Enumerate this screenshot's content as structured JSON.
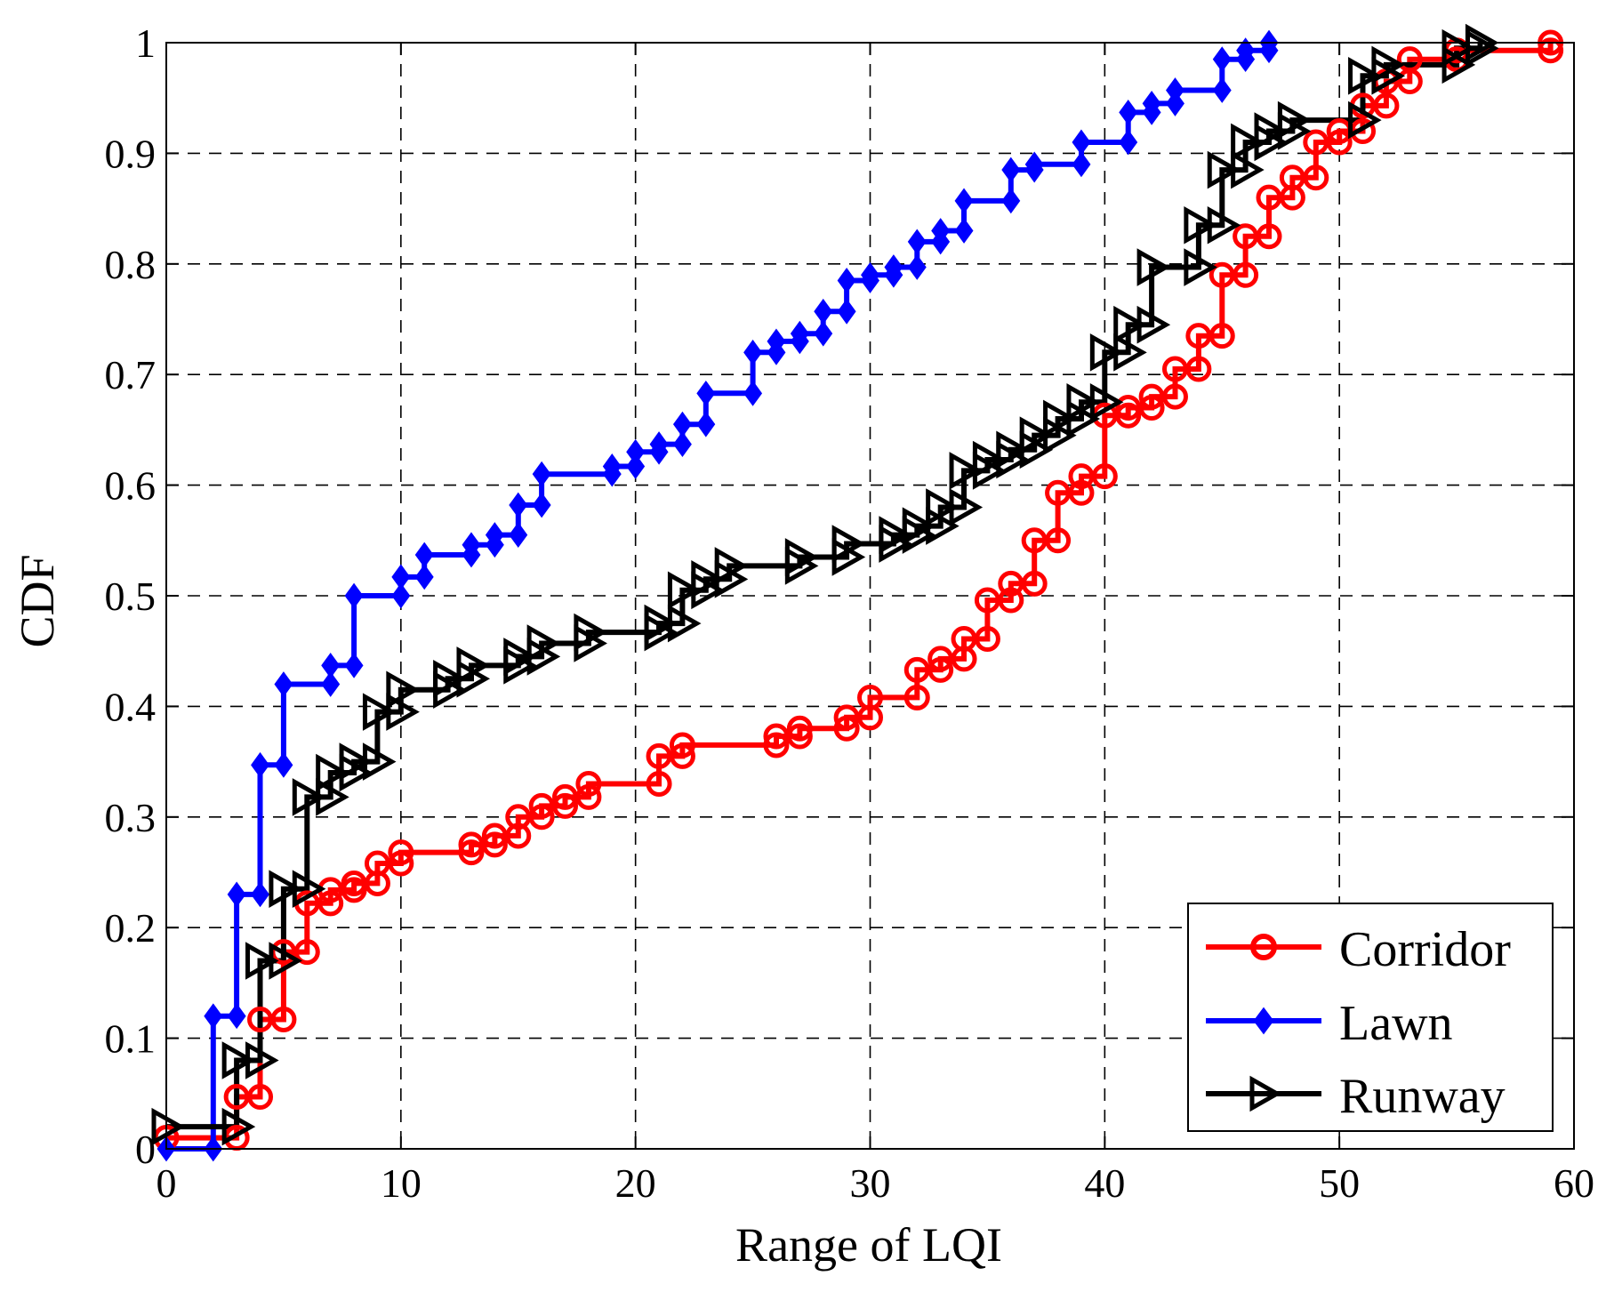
{
  "chart_data": {
    "type": "line",
    "step": true,
    "title": "",
    "xlabel": "Range of LQI",
    "ylabel": "CDF",
    "xlim": [
      0,
      60
    ],
    "ylim": [
      0,
      1
    ],
    "xticks": [
      0,
      10,
      20,
      30,
      40,
      50,
      60
    ],
    "yticks": [
      0,
      0.1,
      0.2,
      0.3,
      0.4,
      0.5,
      0.6,
      0.7,
      0.8,
      0.9,
      1
    ],
    "xtick_labels": [
      "0",
      "10",
      "20",
      "30",
      "40",
      "50",
      "60"
    ],
    "ytick_labels": [
      "0",
      "0.1",
      "0.2",
      "0.3",
      "0.4",
      "0.5",
      "0.6",
      "0.7",
      "0.8",
      "0.9",
      "1"
    ],
    "grid": true,
    "legend_position": "bottom-right",
    "series": [
      {
        "name": "Corridor",
        "color": "#ff0000",
        "marker": "circle",
        "points": [
          [
            0,
            0.01
          ],
          [
            3,
            0.01
          ],
          [
            3,
            0.047
          ],
          [
            4,
            0.047
          ],
          [
            4,
            0.117
          ],
          [
            5,
            0.117
          ],
          [
            5,
            0.178
          ],
          [
            6,
            0.178
          ],
          [
            6,
            0.222
          ],
          [
            7,
            0.222
          ],
          [
            7,
            0.234
          ],
          [
            8,
            0.234
          ],
          [
            8,
            0.24
          ],
          [
            9,
            0.24
          ],
          [
            9,
            0.258
          ],
          [
            10,
            0.258
          ],
          [
            10,
            0.268
          ],
          [
            13,
            0.268
          ],
          [
            13,
            0.275
          ],
          [
            14,
            0.275
          ],
          [
            14,
            0.283
          ],
          [
            15,
            0.283
          ],
          [
            15,
            0.3
          ],
          [
            16,
            0.3
          ],
          [
            16,
            0.31
          ],
          [
            17,
            0.31
          ],
          [
            17,
            0.318
          ],
          [
            18,
            0.318
          ],
          [
            18,
            0.33
          ],
          [
            21,
            0.33
          ],
          [
            21,
            0.355
          ],
          [
            22,
            0.355
          ],
          [
            22,
            0.365
          ],
          [
            26,
            0.365
          ],
          [
            26,
            0.373
          ],
          [
            27,
            0.373
          ],
          [
            27,
            0.38
          ],
          [
            29,
            0.38
          ],
          [
            29,
            0.39
          ],
          [
            30,
            0.39
          ],
          [
            30,
            0.408
          ],
          [
            32,
            0.408
          ],
          [
            32,
            0.433
          ],
          [
            33,
            0.433
          ],
          [
            33,
            0.443
          ],
          [
            34,
            0.443
          ],
          [
            34,
            0.461
          ],
          [
            35,
            0.461
          ],
          [
            35,
            0.496
          ],
          [
            36,
            0.496
          ],
          [
            36,
            0.511
          ],
          [
            37,
            0.511
          ],
          [
            37,
            0.55
          ],
          [
            38,
            0.55
          ],
          [
            38,
            0.593
          ],
          [
            39,
            0.593
          ],
          [
            39,
            0.608
          ],
          [
            40,
            0.608
          ],
          [
            40,
            0.663
          ],
          [
            41,
            0.663
          ],
          [
            41,
            0.67
          ],
          [
            42,
            0.67
          ],
          [
            42,
            0.68
          ],
          [
            43,
            0.68
          ],
          [
            43,
            0.705
          ],
          [
            44,
            0.705
          ],
          [
            44,
            0.735
          ],
          [
            45,
            0.735
          ],
          [
            45,
            0.79
          ],
          [
            46,
            0.79
          ],
          [
            46,
            0.825
          ],
          [
            47,
            0.825
          ],
          [
            47,
            0.86
          ],
          [
            48,
            0.86
          ],
          [
            48,
            0.878
          ],
          [
            49,
            0.878
          ],
          [
            49,
            0.91
          ],
          [
            50,
            0.91
          ],
          [
            50,
            0.92
          ],
          [
            51,
            0.92
          ],
          [
            51,
            0.943
          ],
          [
            52,
            0.943
          ],
          [
            52,
            0.965
          ],
          [
            53,
            0.965
          ],
          [
            53,
            0.985
          ],
          [
            55,
            0.985
          ],
          [
            55,
            0.993
          ],
          [
            59,
            0.993
          ],
          [
            59,
            1.0
          ]
        ]
      },
      {
        "name": "Lawn",
        "color": "#0000ff",
        "marker": "diamond",
        "points": [
          [
            0,
            0.0
          ],
          [
            2,
            0.0
          ],
          [
            2,
            0.12
          ],
          [
            3,
            0.12
          ],
          [
            3,
            0.23
          ],
          [
            4,
            0.23
          ],
          [
            4,
            0.347
          ],
          [
            5,
            0.347
          ],
          [
            5,
            0.42
          ],
          [
            7,
            0.42
          ],
          [
            7,
            0.437
          ],
          [
            8,
            0.437
          ],
          [
            8,
            0.5
          ],
          [
            10,
            0.5
          ],
          [
            10,
            0.517
          ],
          [
            11,
            0.517
          ],
          [
            11,
            0.537
          ],
          [
            13,
            0.537
          ],
          [
            13,
            0.546
          ],
          [
            14,
            0.546
          ],
          [
            14,
            0.555
          ],
          [
            15,
            0.555
          ],
          [
            15,
            0.582
          ],
          [
            16,
            0.582
          ],
          [
            16,
            0.61
          ],
          [
            19,
            0.61
          ],
          [
            19,
            0.617
          ],
          [
            20,
            0.617
          ],
          [
            20,
            0.63
          ],
          [
            21,
            0.63
          ],
          [
            21,
            0.637
          ],
          [
            22,
            0.637
          ],
          [
            22,
            0.655
          ],
          [
            23,
            0.655
          ],
          [
            23,
            0.683
          ],
          [
            25,
            0.683
          ],
          [
            25,
            0.72
          ],
          [
            26,
            0.72
          ],
          [
            26,
            0.73
          ],
          [
            27,
            0.73
          ],
          [
            27,
            0.737
          ],
          [
            28,
            0.737
          ],
          [
            28,
            0.757
          ],
          [
            29,
            0.757
          ],
          [
            29,
            0.785
          ],
          [
            30,
            0.785
          ],
          [
            30,
            0.79
          ],
          [
            31,
            0.79
          ],
          [
            31,
            0.797
          ],
          [
            32,
            0.797
          ],
          [
            32,
            0.82
          ],
          [
            33,
            0.82
          ],
          [
            33,
            0.83
          ],
          [
            34,
            0.83
          ],
          [
            34,
            0.857
          ],
          [
            36,
            0.857
          ],
          [
            36,
            0.885
          ],
          [
            37,
            0.885
          ],
          [
            37,
            0.89
          ],
          [
            39,
            0.89
          ],
          [
            39,
            0.91
          ],
          [
            41,
            0.91
          ],
          [
            41,
            0.937
          ],
          [
            42,
            0.937
          ],
          [
            42,
            0.945
          ],
          [
            43,
            0.945
          ],
          [
            43,
            0.957
          ],
          [
            45,
            0.957
          ],
          [
            45,
            0.985
          ],
          [
            46,
            0.985
          ],
          [
            46,
            0.993
          ],
          [
            47,
            0.993
          ],
          [
            47,
            1.0
          ]
        ]
      },
      {
        "name": "Runway",
        "color": "#000000",
        "marker": "triangle-right",
        "points": [
          [
            0,
            0.02
          ],
          [
            3,
            0.02
          ],
          [
            3,
            0.08
          ],
          [
            4,
            0.08
          ],
          [
            4,
            0.17
          ],
          [
            5,
            0.17
          ],
          [
            5,
            0.235
          ],
          [
            6,
            0.235
          ],
          [
            6,
            0.318
          ],
          [
            7,
            0.318
          ],
          [
            7,
            0.34
          ],
          [
            8,
            0.34
          ],
          [
            8,
            0.35
          ],
          [
            9,
            0.35
          ],
          [
            9,
            0.395
          ],
          [
            10,
            0.395
          ],
          [
            10,
            0.415
          ],
          [
            12,
            0.415
          ],
          [
            12,
            0.425
          ],
          [
            13,
            0.425
          ],
          [
            13,
            0.437
          ],
          [
            15,
            0.437
          ],
          [
            15,
            0.445
          ],
          [
            16,
            0.445
          ],
          [
            16,
            0.457
          ],
          [
            18,
            0.457
          ],
          [
            18,
            0.467
          ],
          [
            21,
            0.467
          ],
          [
            21,
            0.475
          ],
          [
            22,
            0.475
          ],
          [
            22,
            0.505
          ],
          [
            23,
            0.505
          ],
          [
            23,
            0.515
          ],
          [
            24,
            0.515
          ],
          [
            24,
            0.527
          ],
          [
            27,
            0.527
          ],
          [
            27,
            0.535
          ],
          [
            29,
            0.535
          ],
          [
            29,
            0.547
          ],
          [
            31,
            0.547
          ],
          [
            31,
            0.555
          ],
          [
            32,
            0.555
          ],
          [
            32,
            0.563
          ],
          [
            33,
            0.563
          ],
          [
            33,
            0.58
          ],
          [
            34,
            0.58
          ],
          [
            34,
            0.613
          ],
          [
            35,
            0.613
          ],
          [
            35,
            0.623
          ],
          [
            36,
            0.623
          ],
          [
            36,
            0.632
          ],
          [
            37,
            0.632
          ],
          [
            37,
            0.645
          ],
          [
            38,
            0.645
          ],
          [
            38,
            0.66
          ],
          [
            39,
            0.66
          ],
          [
            39,
            0.675
          ],
          [
            40,
            0.675
          ],
          [
            40,
            0.72
          ],
          [
            41,
            0.72
          ],
          [
            41,
            0.745
          ],
          [
            42,
            0.745
          ],
          [
            42,
            0.797
          ],
          [
            44,
            0.797
          ],
          [
            44,
            0.835
          ],
          [
            45,
            0.835
          ],
          [
            45,
            0.885
          ],
          [
            46,
            0.885
          ],
          [
            46,
            0.91
          ],
          [
            47,
            0.91
          ],
          [
            47,
            0.92
          ],
          [
            48,
            0.92
          ],
          [
            48,
            0.93
          ],
          [
            51,
            0.93
          ],
          [
            51,
            0.97
          ],
          [
            52,
            0.97
          ],
          [
            52,
            0.98
          ],
          [
            55,
            0.98
          ],
          [
            55,
            0.995
          ],
          [
            56,
            0.995
          ],
          [
            56,
            1.0
          ]
        ]
      }
    ]
  }
}
